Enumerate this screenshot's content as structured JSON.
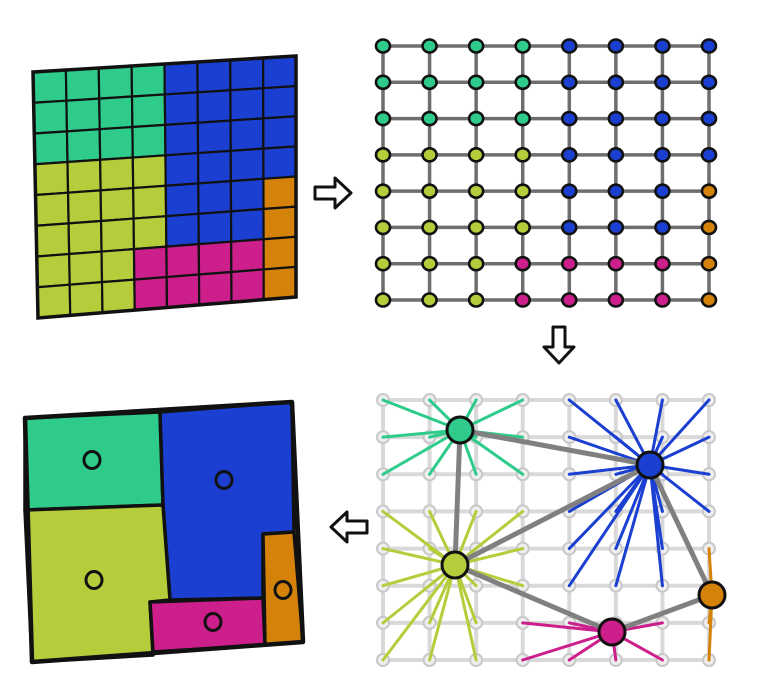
{
  "colors": {
    "teal": "#2fcb8a",
    "blue": "#1a3fd1",
    "lime": "#b6cc3a",
    "magenta": "#cc1f8c",
    "orange": "#d5820b",
    "outline": "#111111",
    "graph_edge": "#808080",
    "faint_grid": "#d9d9d9"
  },
  "grid": {
    "columns": 8,
    "rows": 8,
    "cell_labels": [
      [
        "teal",
        "teal",
        "teal",
        "teal",
        "blue",
        "blue",
        "blue",
        "blue"
      ],
      [
        "teal",
        "teal",
        "teal",
        "teal",
        "blue",
        "blue",
        "blue",
        "blue"
      ],
      [
        "teal",
        "teal",
        "teal",
        "teal",
        "blue",
        "blue",
        "blue",
        "blue"
      ],
      [
        "lime",
        "lime",
        "lime",
        "lime",
        "blue",
        "blue",
        "blue",
        "blue"
      ],
      [
        "lime",
        "lime",
        "lime",
        "lime",
        "blue",
        "blue",
        "blue",
        "orange"
      ],
      [
        "lime",
        "lime",
        "lime",
        "lime",
        "blue",
        "blue",
        "blue",
        "orange"
      ],
      [
        "lime",
        "lime",
        "lime",
        "magenta",
        "magenta",
        "magenta",
        "magenta",
        "orange"
      ],
      [
        "lime",
        "lime",
        "lime",
        "magenta",
        "magenta",
        "magenta",
        "magenta",
        "orange"
      ]
    ]
  },
  "clusters": [
    "teal",
    "blue",
    "lime",
    "magenta",
    "orange"
  ],
  "cluster_links": [
    [
      "teal",
      "blue"
    ],
    [
      "teal",
      "lime"
    ],
    [
      "lime",
      "blue"
    ],
    [
      "lime",
      "magenta"
    ],
    [
      "magenta",
      "orange"
    ],
    [
      "blue",
      "orange"
    ]
  ],
  "arrows": [
    "right",
    "down",
    "left"
  ]
}
